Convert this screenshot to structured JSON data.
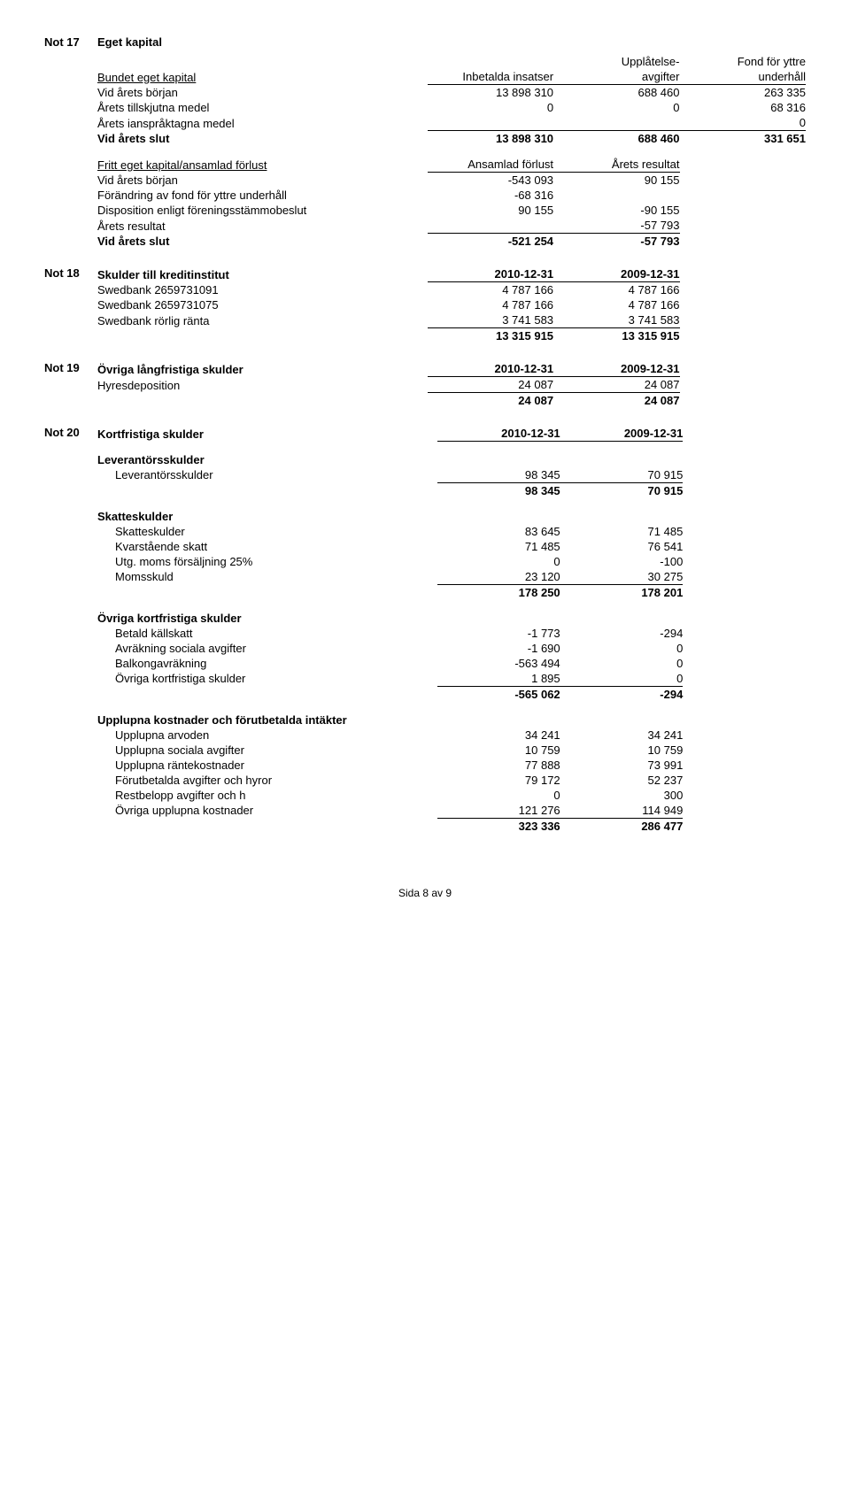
{
  "not17": {
    "label": "Not 17",
    "title": "Eget kapital",
    "headers": {
      "c1": "Inbetalda insatser",
      "c2a": "Upplåtelse-",
      "c2b": "avgifter",
      "c3a": "Fond för yttre",
      "c3b": "underhåll"
    },
    "group1Title": "Bundet eget kapital",
    "rows1": [
      {
        "l": "Vid årets början",
        "v": [
          "13 898 310",
          "688 460",
          "263 335"
        ]
      },
      {
        "l": "Årets tillskjutna medel",
        "v": [
          "0",
          "0",
          "68 316"
        ]
      },
      {
        "l": "Årets ianspråktagna medel",
        "v": [
          "",
          "",
          "0"
        ]
      },
      {
        "l": "Vid årets slut",
        "v": [
          "13 898 310",
          "688 460",
          "331 651"
        ],
        "bold": true
      }
    ],
    "group2Title": "Fritt eget kapital/ansamlad förlust",
    "headers2": {
      "c1": "Ansamlad förlust",
      "c2": "Årets resultat"
    },
    "rows2": [
      {
        "l": "Vid årets början",
        "v": [
          "-543 093",
          "90 155"
        ]
      },
      {
        "l": "Förändring av fond för yttre underhåll",
        "v": [
          "-68 316",
          ""
        ]
      },
      {
        "l": "Disposition enligt föreningsstämmobeslut",
        "v": [
          "90 155",
          "-90 155"
        ]
      },
      {
        "l": "Årets resultat",
        "v": [
          "",
          "-57 793"
        ]
      },
      {
        "l": "Vid årets slut",
        "v": [
          "-521 254",
          "-57 793"
        ],
        "bold": true
      }
    ]
  },
  "not18": {
    "label": "Not 18",
    "title": "Skulder till kreditinstitut",
    "h": [
      "2010-12-31",
      "2009-12-31"
    ],
    "rows": [
      {
        "l": "Swedbank 2659731091",
        "v": [
          "4 787 166",
          "4 787 166"
        ]
      },
      {
        "l": "Swedbank 2659731075",
        "v": [
          "4 787 166",
          "4 787 166"
        ]
      },
      {
        "l": "Swedbank rörlig ränta",
        "v": [
          "3 741 583",
          "3 741 583"
        ]
      },
      {
        "l": "",
        "v": [
          "13 315 915",
          "13 315 915"
        ],
        "bold": true
      }
    ]
  },
  "not19": {
    "label": "Not 19",
    "title": "Övriga långfristiga skulder",
    "h": [
      "2010-12-31",
      "2009-12-31"
    ],
    "rows": [
      {
        "l": "Hyresdeposition",
        "v": [
          "24 087",
          "24 087"
        ]
      },
      {
        "l": "",
        "v": [
          "24 087",
          "24 087"
        ],
        "bold": true
      }
    ]
  },
  "not20": {
    "label": "Not 20",
    "title": "Kortfristiga skulder",
    "h": [
      "2010-12-31",
      "2009-12-31"
    ],
    "groups": [
      {
        "title": "Leverantörsskulder",
        "rows": [
          {
            "l": "Leverantörsskulder",
            "v": [
              "98 345",
              "70 915"
            ]
          },
          {
            "l": "",
            "v": [
              "98 345",
              "70 915"
            ],
            "bold": true
          }
        ]
      },
      {
        "title": "Skatteskulder",
        "rows": [
          {
            "l": "Skatteskulder",
            "v": [
              "83 645",
              "71 485"
            ]
          },
          {
            "l": "Kvarstående skatt",
            "v": [
              "71 485",
              "76 541"
            ]
          },
          {
            "l": "Utg. moms försäljning 25%",
            "v": [
              "0",
              "-100"
            ]
          },
          {
            "l": "Momsskuld",
            "v": [
              "23 120",
              "30 275"
            ]
          },
          {
            "l": "",
            "v": [
              "178 250",
              "178 201"
            ],
            "bold": true
          }
        ]
      },
      {
        "title": "Övriga kortfristiga skulder",
        "rows": [
          {
            "l": "Betald källskatt",
            "v": [
              "-1 773",
              "-294"
            ]
          },
          {
            "l": "Avräkning sociala avgifter",
            "v": [
              "-1 690",
              "0"
            ]
          },
          {
            "l": "Balkongavräkning",
            "v": [
              "-563 494",
              "0"
            ]
          },
          {
            "l": "Övriga kortfristiga skulder",
            "v": [
              "1 895",
              "0"
            ]
          },
          {
            "l": "",
            "v": [
              "-565 062",
              "-294"
            ],
            "bold": true
          }
        ]
      },
      {
        "title": "Upplupna kostnader och förutbetalda intäkter",
        "rows": [
          {
            "l": "Upplupna arvoden",
            "v": [
              "34 241",
              "34 241"
            ]
          },
          {
            "l": "Upplupna sociala avgifter",
            "v": [
              "10 759",
              "10 759"
            ]
          },
          {
            "l": "Upplupna räntekostnader",
            "v": [
              "77 888",
              "73 991"
            ]
          },
          {
            "l": "Förutbetalda avgifter och hyror",
            "v": [
              "79 172",
              "52 237"
            ]
          },
          {
            "l": "Restbelopp avgifter och h",
            "v": [
              "0",
              "300"
            ]
          },
          {
            "l": "Övriga upplupna kostnader",
            "v": [
              "121 276",
              "114 949"
            ]
          },
          {
            "l": "",
            "v": [
              "323 336",
              "286 477"
            ],
            "bold": true
          }
        ]
      }
    ]
  },
  "footer": "Sida 8 av 9"
}
